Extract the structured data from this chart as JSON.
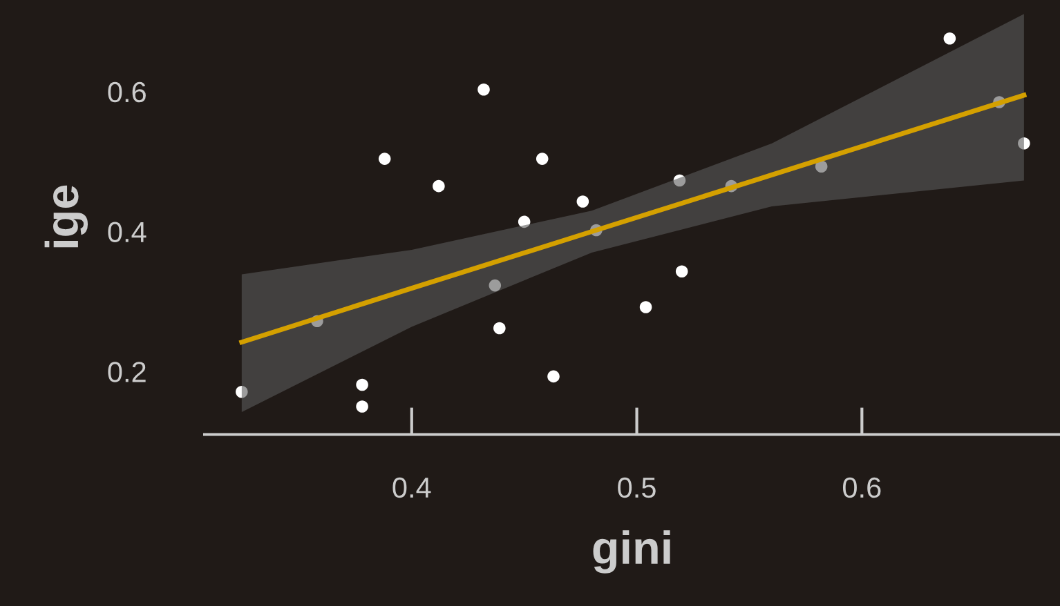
{
  "chart_data": {
    "type": "scatter",
    "xlabel": "gini",
    "ylabel": "ige",
    "xlim": [
      0.308,
      0.688
    ],
    "ylim": [
      0.11,
      0.731
    ],
    "xticks": [
      0.4,
      0.5,
      0.6
    ],
    "yticks": [
      0.2,
      0.4,
      0.6
    ],
    "grid": false,
    "marker": "circle",
    "series": [
      {
        "color": "#ffffff",
        "x": [
          0.3245,
          0.358,
          0.378,
          0.378,
          0.388,
          0.412,
          0.432,
          0.437,
          0.439,
          0.45,
          0.458,
          0.463,
          0.476,
          0.482,
          0.504,
          0.519,
          0.52,
          0.542,
          0.582,
          0.639,
          0.661,
          0.672
        ],
        "values": [
          0.171,
          0.272,
          0.181,
          0.15,
          0.504,
          0.465,
          0.603,
          0.323,
          0.262,
          0.414,
          0.504,
          0.193,
          0.443,
          0.402,
          0.292,
          0.473,
          0.343,
          0.465,
          0.493,
          0.676,
          0.585,
          0.526
        ]
      },
      {
        "type": "line",
        "marker": "none",
        "color": "#d4a000",
        "x": [
          0.3245,
          0.4,
          0.48,
          0.56,
          0.672
        ],
        "values": [
          0.242,
          0.319,
          0.4,
          0.481,
          0.595
        ],
        "lower": [
          0.142,
          0.264,
          0.37,
          0.436,
          0.473
        ],
        "upper": [
          0.339,
          0.374,
          0.43,
          0.526,
          0.711
        ]
      }
    ]
  }
}
